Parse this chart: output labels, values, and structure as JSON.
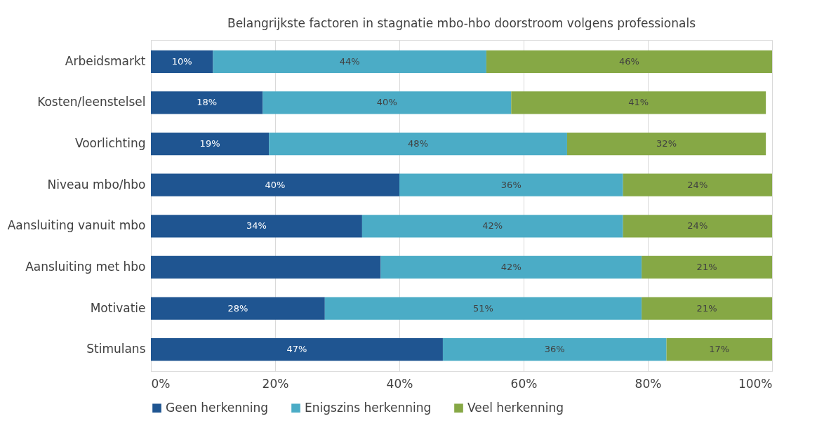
{
  "chart_data": {
    "type": "bar",
    "orientation": "horizontal",
    "stacked": true,
    "title": "Belangrijkste factoren in stagnatie mbo-hbo doorstroom volgens professionals",
    "categories": [
      "Arbeidsmarkt",
      "Kosten/leenstelsel",
      "Voorlichting",
      "Niveau mbo/hbo",
      "Aansluiting vanuit mbo",
      "Aansluiting met hbo",
      "Motivatie",
      "Stimulans"
    ],
    "series": [
      {
        "name": "Geen herkenning",
        "color": "#1f5591",
        "values": [
          10,
          18,
          19,
          40,
          34,
          37,
          28,
          47
        ],
        "value_labels": [
          "10%",
          "18%",
          "19%",
          "40%",
          "34%",
          null,
          "28%",
          "47%"
        ]
      },
      {
        "name": "Enigszins herkenning",
        "color": "#4bacc6",
        "values": [
          44,
          40,
          48,
          36,
          42,
          42,
          51,
          36
        ],
        "value_labels": [
          "44%",
          "40%",
          "48%",
          "36%",
          "42%",
          "42%",
          "51%",
          "36%"
        ]
      },
      {
        "name": "Veel herkenning",
        "color": "#86a845",
        "values": [
          46,
          41,
          32,
          24,
          24,
          21,
          21,
          17
        ],
        "value_labels": [
          "46%",
          "41%",
          "32%",
          "24%",
          "24%",
          "21%",
          "21%",
          "17%"
        ]
      }
    ],
    "xlim": [
      0,
      100
    ],
    "xticks": [
      {
        "value": 0,
        "label": "0%"
      },
      {
        "value": 20,
        "label": "20%"
      },
      {
        "value": 40,
        "label": "40%"
      },
      {
        "value": 60,
        "label": "60%"
      },
      {
        "value": 80,
        "label": "80%"
      },
      {
        "value": 100,
        "label": "100%"
      }
    ],
    "grid": "x",
    "legend": "bottom"
  }
}
